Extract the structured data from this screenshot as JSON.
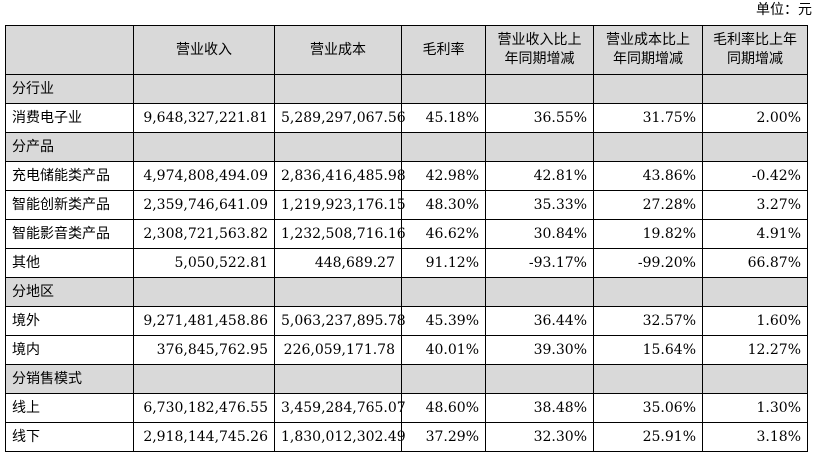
{
  "unit_label": "单位：元",
  "headers": [
    "",
    "营业收入",
    "营业成本",
    "毛利率",
    "营业收入比上年同期增减",
    "营业成本比上年同期增减",
    "毛利率比上年同期增减"
  ],
  "sections": [
    {
      "title": "分行业",
      "rows": [
        {
          "name": "消费电子业",
          "revenue": "9,648,327,221.81",
          "cost": "5,289,297,067.56",
          "margin": "45.18%",
          "rev_change": "36.55%",
          "cost_change": "31.75%",
          "margin_change": "2.00%"
        }
      ]
    },
    {
      "title": "分产品",
      "rows": [
        {
          "name": "充电储能类产品",
          "revenue": "4,974,808,494.09",
          "cost": "2,836,416,485.98",
          "margin": "42.98%",
          "rev_change": "42.81%",
          "cost_change": "43.86%",
          "margin_change": "-0.42%"
        },
        {
          "name": "智能创新类产品",
          "revenue": "2,359,746,641.09",
          "cost": "1,219,923,176.15",
          "margin": "48.30%",
          "rev_change": "35.33%",
          "cost_change": "27.28%",
          "margin_change": "3.27%"
        },
        {
          "name": "智能影音类产品",
          "revenue": "2,308,721,563.82",
          "cost": "1,232,508,716.16",
          "margin": "46.62%",
          "rev_change": "30.84%",
          "cost_change": "19.82%",
          "margin_change": "4.91%"
        },
        {
          "name": "其他",
          "revenue": "5,050,522.81",
          "cost": "448,689.27",
          "margin": "91.12%",
          "rev_change": "-93.17%",
          "cost_change": "-99.20%",
          "margin_change": "66.87%"
        }
      ]
    },
    {
      "title": "分地区",
      "rows": [
        {
          "name": "境外",
          "revenue": "9,271,481,458.86",
          "cost": "5,063,237,895.78",
          "margin": "45.39%",
          "rev_change": "36.44%",
          "cost_change": "32.57%",
          "margin_change": "1.60%"
        },
        {
          "name": "境内",
          "revenue": "376,845,762.95",
          "cost": "226,059,171.78",
          "margin": "40.01%",
          "rev_change": "39.30%",
          "cost_change": "15.64%",
          "margin_change": "12.27%"
        }
      ]
    },
    {
      "title": "分销售模式",
      "rows": [
        {
          "name": "线上",
          "revenue": "6,730,182,476.55",
          "cost": "3,459,284,765.07",
          "margin": "48.60%",
          "rev_change": "38.48%",
          "cost_change": "35.06%",
          "margin_change": "1.30%"
        },
        {
          "name": "线下",
          "revenue": "2,918,144,745.26",
          "cost": "1,830,012,302.49",
          "margin": "37.29%",
          "rev_change": "32.30%",
          "cost_change": "25.91%",
          "margin_change": "3.18%"
        }
      ]
    }
  ]
}
